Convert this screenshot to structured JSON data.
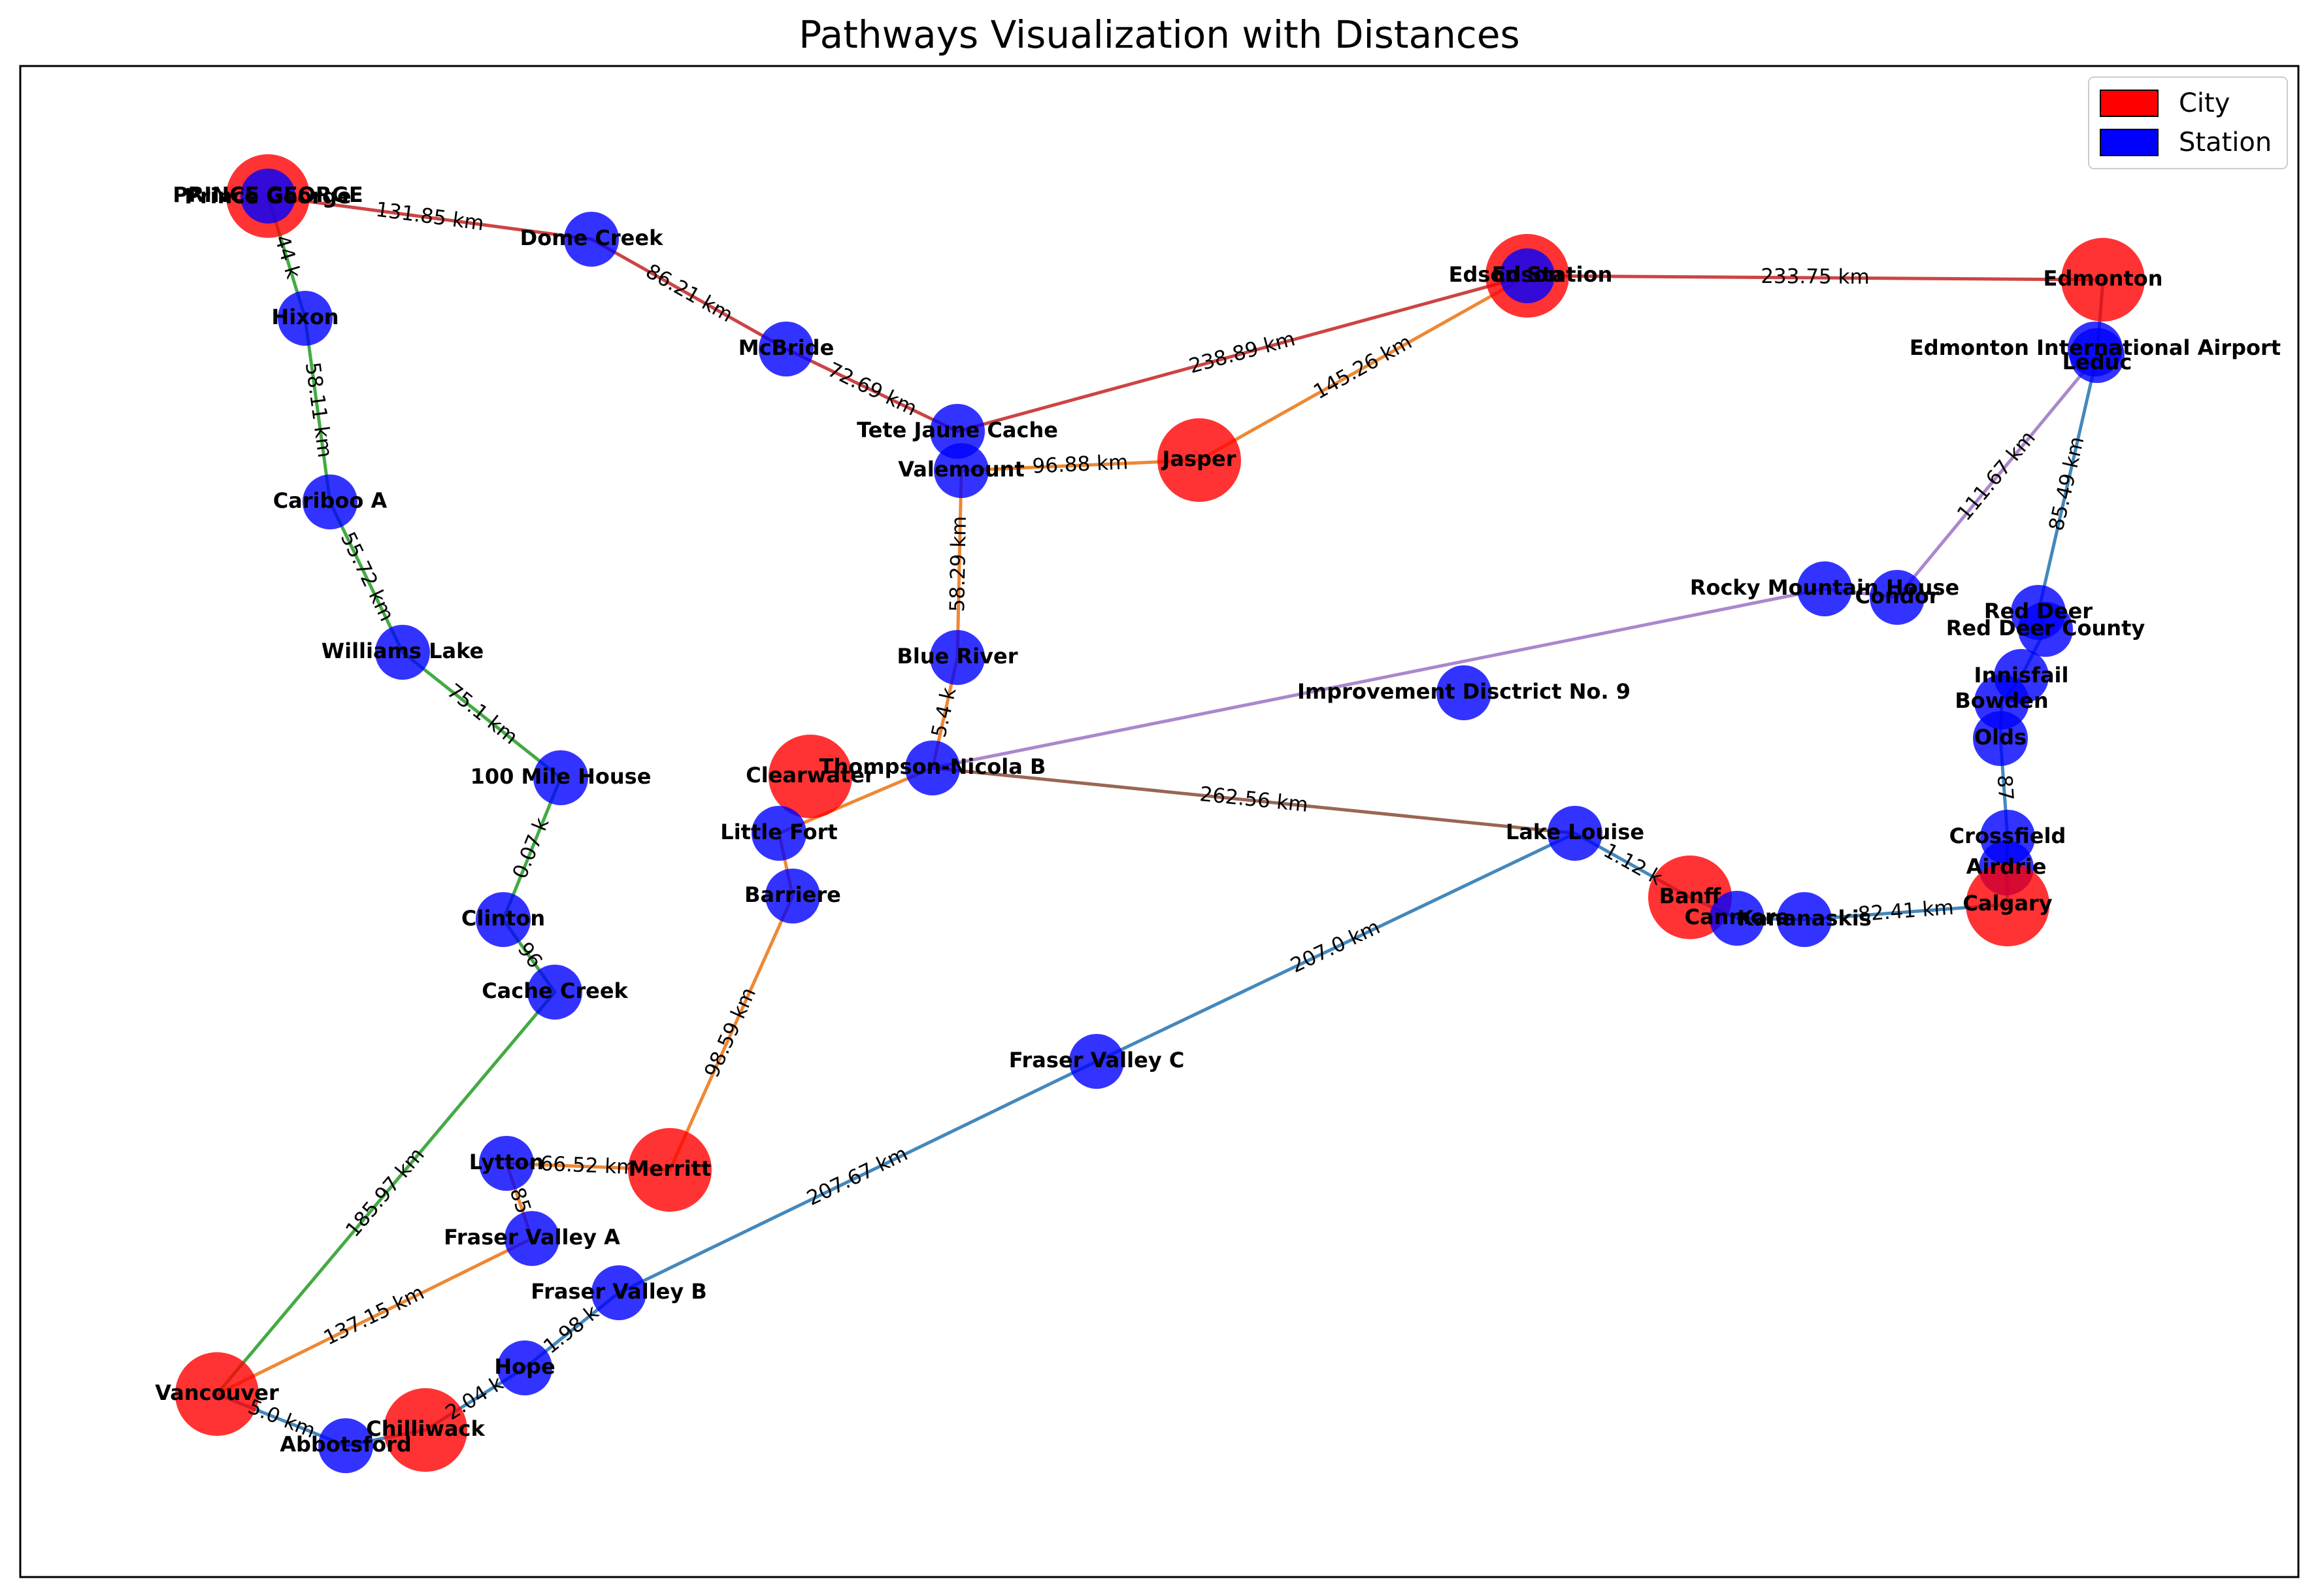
{
  "title": "Pathways Visualization with Distances",
  "legend": {
    "placement": "top-right",
    "items": [
      {
        "label": "City",
        "color": "#ff0000"
      },
      {
        "label": "Station",
        "color": "#0000ff"
      }
    ]
  },
  "colors": {
    "city": "#ff0000",
    "station": "#0000ff",
    "routes": {
      "red": "#cc4444",
      "orange": "#ee8833",
      "green": "#44aa44",
      "purple": "#aa88cc",
      "blue": "#4488bb",
      "brown": "#996655"
    }
  },
  "nodes": [
    {
      "id": "prince_george",
      "type": "city",
      "label": "PRINCE GEORGE"
    },
    {
      "id": "prince_george_st",
      "type": "station",
      "label": "Prince George"
    },
    {
      "id": "dome_creek",
      "type": "station",
      "label": "Dome Creek"
    },
    {
      "id": "mcbride",
      "type": "station",
      "label": "McBride"
    },
    {
      "id": "tete_jaune",
      "type": "station",
      "label": "Tete Jaune Cache"
    },
    {
      "id": "valemount",
      "type": "station",
      "label": "Valemount"
    },
    {
      "id": "jasper",
      "type": "city",
      "label": "Jasper"
    },
    {
      "id": "edson",
      "type": "city",
      "label": "Edson"
    },
    {
      "id": "edson_station",
      "type": "station",
      "label": "Edson Station"
    },
    {
      "id": "edmonton",
      "type": "city",
      "label": "Edmonton"
    },
    {
      "id": "edmonton_airport",
      "type": "station",
      "label": "Edmonton International Airport"
    },
    {
      "id": "leduc",
      "type": "station",
      "label": "Leduc"
    },
    {
      "id": "hixon",
      "type": "station",
      "label": "Hixon"
    },
    {
      "id": "cariboo_a",
      "type": "station",
      "label": "Cariboo A"
    },
    {
      "id": "williams_lake",
      "type": "station",
      "label": "Williams Lake"
    },
    {
      "id": "hundred_mile",
      "type": "station",
      "label": "100 Mile House"
    },
    {
      "id": "clinton",
      "type": "station",
      "label": "Clinton"
    },
    {
      "id": "cache_creek",
      "type": "station",
      "label": "Cache Creek"
    },
    {
      "id": "blue_river",
      "type": "station",
      "label": "Blue River"
    },
    {
      "id": "thompson_nicola",
      "type": "station",
      "label": "Thompson-Nicola B"
    },
    {
      "id": "clearwater",
      "type": "city",
      "label": "Clearwater"
    },
    {
      "id": "little_fort",
      "type": "station",
      "label": "Little Fort"
    },
    {
      "id": "barriere",
      "type": "station",
      "label": "Barriere"
    },
    {
      "id": "rocky_mountain",
      "type": "station",
      "label": "Rocky Mountain House"
    },
    {
      "id": "condor",
      "type": "station",
      "label": "Condor"
    },
    {
      "id": "improvement",
      "type": "station",
      "label": "Improvement Disctrict No. 9"
    },
    {
      "id": "red_deer",
      "type": "station",
      "label": "Red Deer"
    },
    {
      "id": "red_deer_county",
      "type": "station",
      "label": "Red Deer County"
    },
    {
      "id": "innisfail",
      "type": "station",
      "label": "Innisfail"
    },
    {
      "id": "bowden",
      "type": "station",
      "label": "Bowden"
    },
    {
      "id": "olds",
      "type": "station",
      "label": "Olds"
    },
    {
      "id": "crossfield",
      "type": "station",
      "label": "Crossfield"
    },
    {
      "id": "airdrie",
      "type": "station",
      "label": "Airdrie"
    },
    {
      "id": "calgary",
      "type": "city",
      "label": "Calgary"
    },
    {
      "id": "lake_louise",
      "type": "station",
      "label": "Lake Louise"
    },
    {
      "id": "banff",
      "type": "city",
      "label": "Banff"
    },
    {
      "id": "canmore",
      "type": "station",
      "label": "Canmore"
    },
    {
      "id": "kananaskis",
      "type": "station",
      "label": "Kananaskis"
    },
    {
      "id": "fraser_c",
      "type": "station",
      "label": "Fraser Valley C"
    },
    {
      "id": "fraser_b",
      "type": "station",
      "label": "Fraser Valley B"
    },
    {
      "id": "fraser_a",
      "type": "station",
      "label": "Fraser Valley A"
    },
    {
      "id": "lytton",
      "type": "station",
      "label": "Lytton"
    },
    {
      "id": "merritt",
      "type": "city",
      "label": "Merritt"
    },
    {
      "id": "vancouver",
      "type": "city",
      "label": "Vancouver"
    },
    {
      "id": "hope",
      "type": "station",
      "label": "Hope"
    },
    {
      "id": "chilliwack",
      "type": "city",
      "label": "Chilliwack"
    },
    {
      "id": "abbotsford",
      "type": "station",
      "label": "Abbotsford"
    }
  ],
  "edges": [
    {
      "from": "prince_george",
      "to": "dome_creek",
      "route": "red",
      "label": "131.85 km"
    },
    {
      "from": "dome_creek",
      "to": "mcbride",
      "route": "red",
      "label": "86.21 km"
    },
    {
      "from": "mcbride",
      "to": "tete_jaune",
      "route": "red",
      "label": "72.69 km"
    },
    {
      "from": "tete_jaune",
      "to": "edson",
      "route": "red",
      "label": "238.89 km"
    },
    {
      "from": "edson",
      "to": "edmonton",
      "route": "red",
      "label": "233.75 km"
    },
    {
      "from": "valemount",
      "to": "jasper",
      "route": "orange",
      "label": "96.88 km"
    },
    {
      "from": "jasper",
      "to": "edson",
      "route": "orange",
      "label": "145.26 km"
    },
    {
      "from": "valemount",
      "to": "blue_river",
      "route": "orange",
      "label": "58.29 km"
    },
    {
      "from": "blue_river",
      "to": "thompson_nicola",
      "route": "orange",
      "label": "5.4 k"
    },
    {
      "from": "thompson_nicola",
      "to": "little_fort",
      "route": "orange",
      "label": ""
    },
    {
      "from": "little_fort",
      "to": "barriere",
      "route": "orange",
      "label": ""
    },
    {
      "from": "barriere",
      "to": "merritt",
      "route": "orange",
      "label": "98.59 km"
    },
    {
      "from": "merritt",
      "to": "lytton",
      "route": "orange",
      "label": "66.52 km"
    },
    {
      "from": "lytton",
      "to": "fraser_a",
      "route": "orange",
      "label": "85"
    },
    {
      "from": "fraser_a",
      "to": "vancouver",
      "route": "orange",
      "label": "137.15 km"
    },
    {
      "from": "prince_george",
      "to": "hixon",
      "route": "green",
      "label": "44 k"
    },
    {
      "from": "hixon",
      "to": "cariboo_a",
      "route": "green",
      "label": "58.11 km"
    },
    {
      "from": "cariboo_a",
      "to": "williams_lake",
      "route": "green",
      "label": "55.72 km"
    },
    {
      "from": "williams_lake",
      "to": "hundred_mile",
      "route": "green",
      "label": "75.1 km"
    },
    {
      "from": "hundred_mile",
      "to": "clinton",
      "route": "green",
      "label": "0.07 k"
    },
    {
      "from": "clinton",
      "to": "cache_creek",
      "route": "green",
      "label": "96"
    },
    {
      "from": "cache_creek",
      "to": "vancouver",
      "route": "green",
      "label": "185.97 km"
    },
    {
      "from": "thompson_nicola",
      "to": "rocky_mountain",
      "route": "purple",
      "label": ""
    },
    {
      "from": "rocky_mountain",
      "to": "condor",
      "route": "purple",
      "label": ""
    },
    {
      "from": "condor",
      "to": "leduc",
      "route": "purple",
      "label": "111.67 km"
    },
    {
      "from": "thompson_nicola",
      "to": "lake_louise",
      "route": "brown",
      "label": "262.56 km"
    },
    {
      "from": "lake_louise",
      "to": "banff",
      "route": "blue",
      "label": "1.12 k"
    },
    {
      "from": "banff",
      "to": "canmore",
      "route": "blue",
      "label": ""
    },
    {
      "from": "canmore",
      "to": "kananaskis",
      "route": "blue",
      "label": ""
    },
    {
      "from": "kananaskis",
      "to": "calgary",
      "route": "blue",
      "label": "82.41 km"
    },
    {
      "from": "calgary",
      "to": "airdrie",
      "route": "blue",
      "label": ""
    },
    {
      "from": "airdrie",
      "to": "crossfield",
      "route": "blue",
      "label": ""
    },
    {
      "from": "crossfield",
      "to": "olds",
      "route": "blue",
      "label": "87"
    },
    {
      "from": "olds",
      "to": "bowden",
      "route": "blue",
      "label": ""
    },
    {
      "from": "bowden",
      "to": "innisfail",
      "route": "blue",
      "label": ""
    },
    {
      "from": "innisfail",
      "to": "red_deer_county",
      "route": "blue",
      "label": ""
    },
    {
      "from": "red_deer_county",
      "to": "red_deer",
      "route": "blue",
      "label": ""
    },
    {
      "from": "red_deer",
      "to": "leduc",
      "route": "blue",
      "label": "85.49 km"
    },
    {
      "from": "leduc",
      "to": "edmonton",
      "route": "blue",
      "label": ""
    },
    {
      "from": "lake_louise",
      "to": "fraser_c",
      "route": "blue",
      "label": "207.0 km"
    },
    {
      "from": "fraser_c",
      "to": "fraser_b",
      "route": "blue",
      "label": "207.67 km"
    },
    {
      "from": "fraser_b",
      "to": "hope",
      "route": "blue",
      "label": "1.98 k"
    },
    {
      "from": "hope",
      "to": "chilliwack",
      "route": "blue",
      "label": "2.04 k"
    },
    {
      "from": "chilliwack",
      "to": "abbotsford",
      "route": "blue",
      "label": ""
    },
    {
      "from": "abbotsford",
      "to": "vancouver",
      "route": "blue",
      "label": "5.0 km"
    }
  ]
}
